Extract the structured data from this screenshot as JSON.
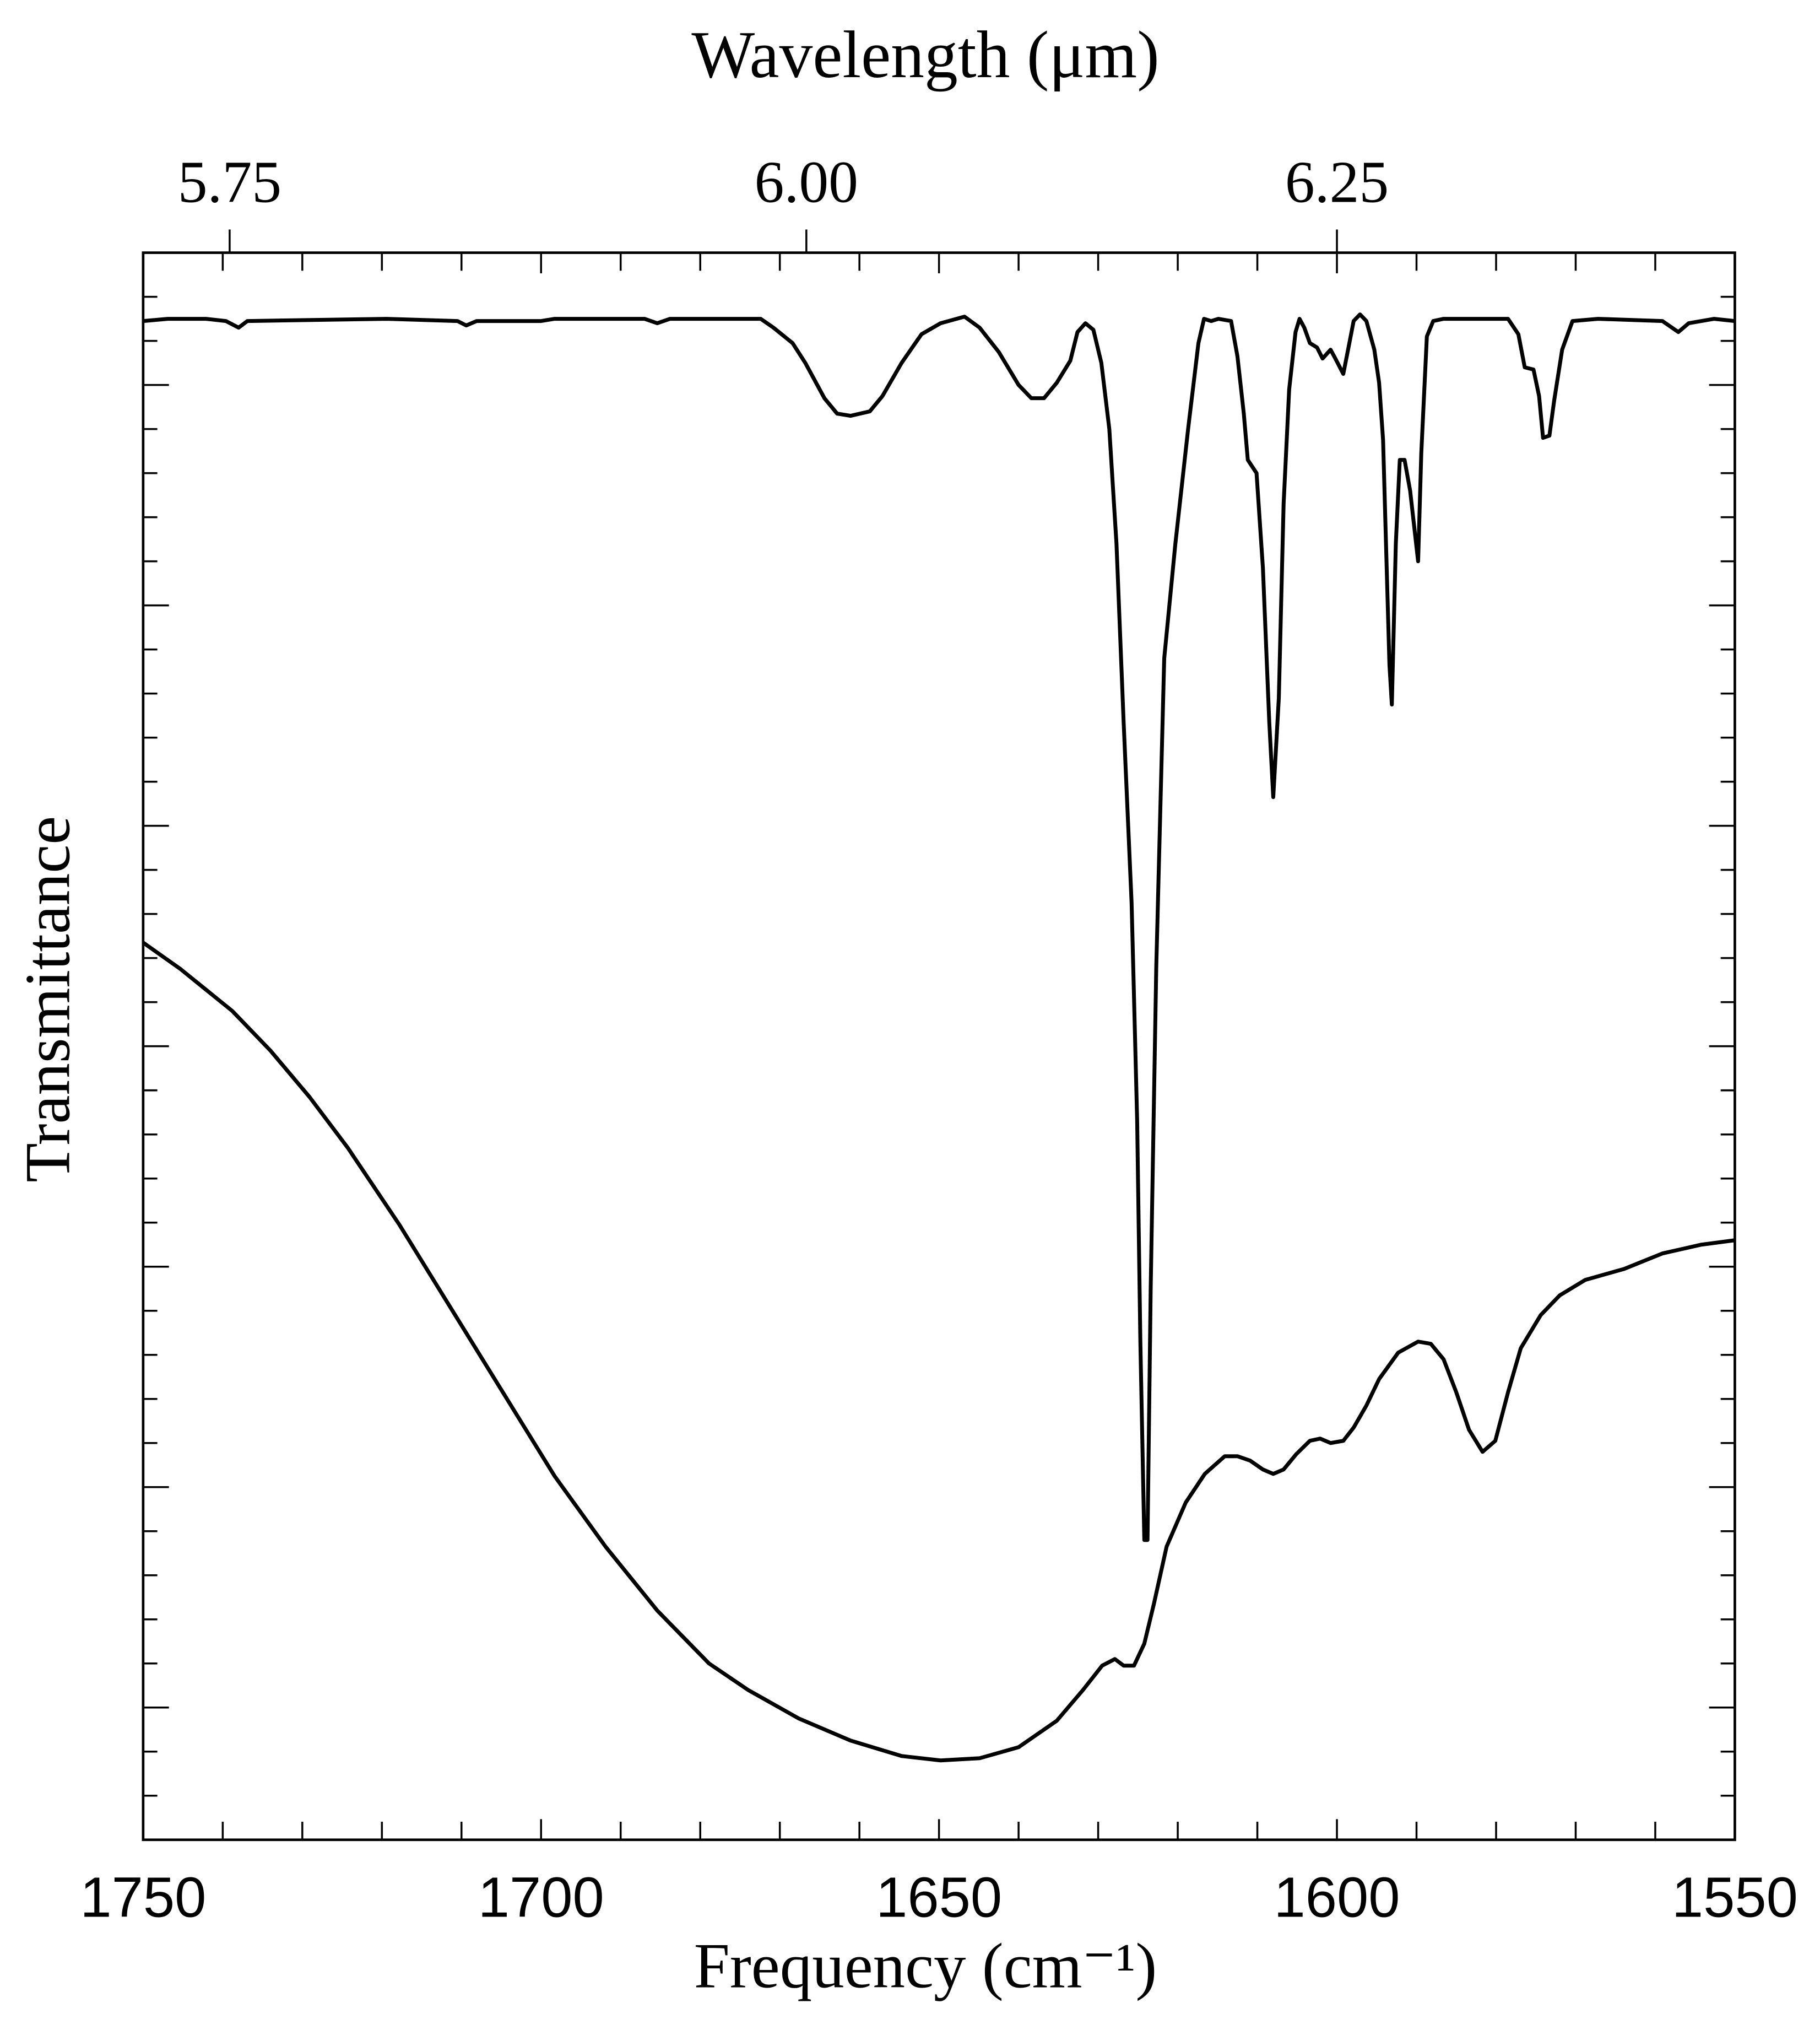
{
  "chart_data": {
    "type": "line",
    "title": "Wavelength (μm)",
    "xlabel": "Frequency (cm⁻¹)",
    "ylabel": "Transmittance",
    "xlim": [
      1750,
      1550
    ],
    "xticks": [
      1750,
      1700,
      1650,
      1600,
      1550
    ],
    "xminorticks": [
      1740,
      1730,
      1720,
      1710,
      1690,
      1680,
      1670,
      1660,
      1640,
      1630,
      1620,
      1610,
      1590,
      1580,
      1570,
      1560
    ],
    "x2ticks": [
      5.75,
      {
        "value": 6,
        "label": "6.00"
      },
      6.25
    ],
    "ylim": [
      -0.6,
      6.6
    ],
    "yticks": [
      0,
      1,
      2,
      3,
      4,
      5,
      6
    ],
    "yminorticks": [
      -0.4,
      -0.2,
      0.2,
      0.4,
      0.6,
      0.8,
      1.2,
      1.4,
      1.6,
      1.8,
      2.2,
      2.4,
      2.6,
      2.8,
      3.2,
      3.4,
      3.6,
      3.8,
      4.2,
      4.4,
      4.6,
      4.8,
      5.2,
      5.4,
      5.6,
      5.8,
      6.2,
      6.4
    ],
    "series": [
      {
        "color": "#000000",
        "x": [
          1750,
          1746.9,
          1742.1,
          1739.6,
          1738.0,
          1736.9,
          1719.4,
          1710.5,
          1709.4,
          1708.1,
          1700.0,
          1698.3,
          1687.0,
          1685.4,
          1683.8,
          1672.4,
          1670.8,
          1668.4,
          1666.8,
          1664.4,
          1662.8,
          1661.1,
          1658.7,
          1657.1,
          1654.7,
          1652.2,
          1649.8,
          1646.8,
          1644.9,
          1642.5,
          1640.0,
          1638.4,
          1636.8,
          1635.2,
          1633.5,
          1632.6,
          1631.6,
          1630.6,
          1629.6,
          1628.6,
          1627.7,
          1626.8,
          1625.8,
          1625.1,
          1624.7,
          1624.2,
          1623.8,
          1623.4,
          1622.7,
          1621.7,
          1620.3,
          1618.7,
          1617.4,
          1616.7,
          1615.8,
          1614.9,
          1613.3,
          1612.5,
          1611.7,
          1611.2,
          1610.1,
          1609.3,
          1608.5,
          1608.0,
          1607.3,
          1606.7,
          1606.0,
          1605.2,
          1604.7,
          1604.1,
          1603.4,
          1602.5,
          1601.8,
          1600.8,
          1600.2,
          1599.2,
          1598.6,
          1597.9,
          1597.1,
          1596.3,
          1595.3,
          1594.7,
          1594.2,
          1593.7,
          1593.4,
          1593.1,
          1592.6,
          1592.1,
          1591.5,
          1590.8,
          1589.8,
          1589.4,
          1588.7,
          1587.9,
          1586.6,
          1578.5,
          1577.2,
          1576.4,
          1575.3,
          1574.6,
          1574.1,
          1573.3,
          1572.7,
          1571.7,
          1570.4,
          1567.2,
          1559.1,
          1557.1,
          1555.8,
          1554.2,
          1552.6,
          1550
        ],
        "values": [
          6.29,
          6.3,
          6.3,
          6.29,
          6.26,
          6.29,
          6.3,
          6.29,
          6.27,
          6.29,
          6.29,
          6.3,
          6.3,
          6.28,
          6.3,
          6.3,
          6.26,
          6.19,
          6.1,
          5.94,
          5.87,
          5.86,
          5.88,
          5.95,
          6.1,
          6.23,
          6.28,
          6.31,
          6.26,
          6.15,
          6.0,
          5.94,
          5.94,
          6.01,
          6.11,
          6.24,
          6.28,
          6.25,
          6.1,
          5.8,
          5.28,
          4.47,
          3.65,
          2.66,
          1.66,
          0.76,
          0.76,
          1.9,
          3.36,
          4.76,
          5.28,
          5.8,
          6.19,
          6.3,
          6.29,
          6.3,
          6.29,
          6.13,
          5.87,
          5.66,
          5.6,
          5.17,
          4.47,
          4.13,
          4.58,
          5.46,
          5.98,
          6.24,
          6.3,
          6.26,
          6.19,
          6.17,
          6.12,
          6.16,
          6.12,
          6.05,
          6.16,
          6.29,
          6.32,
          6.29,
          6.16,
          6.01,
          5.75,
          5.11,
          4.73,
          4.55,
          5.28,
          5.66,
          5.66,
          5.52,
          5.2,
          5.69,
          6.22,
          6.29,
          6.3,
          6.3,
          6.23,
          6.08,
          6.07,
          5.95,
          5.76,
          5.77,
          5.93,
          6.16,
          6.29,
          6.3,
          6.29,
          6.24,
          6.28,
          6.29,
          6.3,
          6.29
        ]
      },
      {
        "color": "#000000",
        "x": [
          1750,
          1745.3,
          1738.8,
          1734.0,
          1729.1,
          1724.3,
          1717.8,
          1711.3,
          1704.8,
          1698.3,
          1691.9,
          1685.4,
          1678.9,
          1674.0,
          1667.6,
          1661.1,
          1654.7,
          1649.8,
          1644.9,
          1640.0,
          1635.2,
          1631.9,
          1629.5,
          1627.9,
          1626.8,
          1625.5,
          1624.2,
          1623.0,
          1621.4,
          1619.0,
          1616.6,
          1614.1,
          1612.5,
          1610.9,
          1609.3,
          1608.0,
          1606.7,
          1605.1,
          1603.4,
          1602.1,
          1600.8,
          1599.2,
          1597.9,
          1596.3,
          1594.7,
          1592.3,
          1589.8,
          1588.2,
          1586.6,
          1585.0,
          1583.4,
          1581.7,
          1580.1,
          1578.5,
          1576.9,
          1574.4,
          1572.0,
          1568.8,
          1563.9,
          1559.1,
          1554.2,
          1550
        ],
        "values": [
          3.47,
          3.35,
          3.16,
          2.98,
          2.77,
          2.54,
          2.19,
          1.81,
          1.43,
          1.05,
          0.73,
          0.44,
          0.2,
          0.08,
          -0.05,
          -0.15,
          -0.22,
          -0.24,
          -0.23,
          -0.18,
          -0.06,
          0.08,
          0.19,
          0.22,
          0.19,
          0.19,
          0.29,
          0.47,
          0.73,
          0.93,
          1.06,
          1.14,
          1.14,
          1.12,
          1.08,
          1.06,
          1.08,
          1.15,
          1.21,
          1.22,
          1.2,
          1.21,
          1.27,
          1.37,
          1.49,
          1.61,
          1.66,
          1.65,
          1.58,
          1.43,
          1.26,
          1.16,
          1.21,
          1.43,
          1.63,
          1.78,
          1.87,
          1.94,
          1.99,
          2.06,
          2.1,
          2.12
        ]
      }
    ]
  }
}
